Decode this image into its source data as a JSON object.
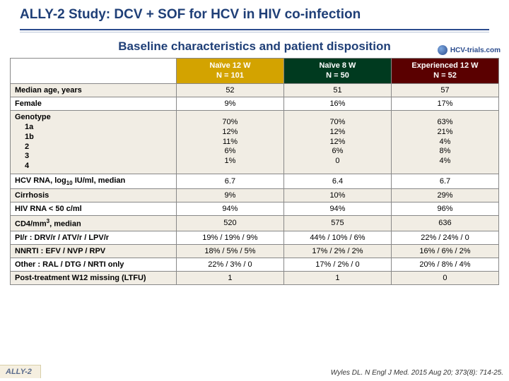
{
  "header": {
    "title": "ALLY-2 Study: DCV + SOF for HCV in HIV co-infection",
    "logo_text": "HCV-trials.com"
  },
  "subtitle": "Baseline characteristics and patient disposition",
  "columns": [
    {
      "label_line1": "Naïve 12 W",
      "label_line2": "N = 101",
      "bg": "#d3a300"
    },
    {
      "label_line1": "Naïve 8 W",
      "label_line2": "N = 50",
      "bg": "#003a1f"
    },
    {
      "label_line1": "Experienced 12 W",
      "label_line2": "N = 52",
      "bg": "#5a0000"
    }
  ],
  "rows": [
    {
      "label": "Median age, years",
      "band": true,
      "c": [
        "52",
        "51",
        "57"
      ]
    },
    {
      "label": "Female",
      "band": false,
      "c": [
        "9%",
        "16%",
        "17%"
      ]
    },
    {
      "label_html": "Genotype<br><span class='indent'>1a</span><br><span class='indent'>1b</span><br><span class='indent'>2</span><br><span class='indent'>3</span><br><span class='indent'>4</span>",
      "band": true,
      "multiline": true,
      "c_html": [
        "70%<br>12%<br>11%<br>6%<br>1%",
        "70%<br>12%<br>12%<br>6%<br>0",
        "63%<br>21%<br>4%<br>8%<br>4%"
      ]
    },
    {
      "label_html": "HCV RNA, log<span class='sub'>10</span> IU/ml, median",
      "band": false,
      "c": [
        "6.7",
        "6.4",
        "6.7"
      ]
    },
    {
      "label": "Cirrhosis",
      "band": true,
      "c": [
        "9%",
        "10%",
        "29%"
      ]
    },
    {
      "label": "HIV RNA < 50 c/ml",
      "band": false,
      "c": [
        "94%",
        "94%",
        "96%"
      ]
    },
    {
      "label_html": "CD4/mm<span class='sup'>3</span>, median",
      "band": true,
      "c": [
        "520",
        "575",
        "636"
      ]
    },
    {
      "label": "PI/r : DRV/r / ATV/r / LPV/r",
      "band": false,
      "c": [
        "19% / 19% / 9%",
        "44% / 10% / 6%",
        "22% / 24% / 0"
      ]
    },
    {
      "label": "NNRTI : EFV / NVP / RPV",
      "band": true,
      "c": [
        "18% / 5% / 5%",
        "17% / 2% / 2%",
        "16% / 6% / 2%"
      ]
    },
    {
      "label": "Other : RAL / DTG / NRTI only",
      "band": false,
      "c": [
        "22% / 3% / 0",
        "17% / 2% / 0",
        "20% / 8% / 4%"
      ]
    },
    {
      "label": "Post-treatment W12 missing (LTFU)",
      "band": true,
      "c": [
        "1",
        "1",
        "0"
      ]
    }
  ],
  "footer": {
    "left": "ALLY-2",
    "right": "Wyles DL. N Engl J Med. 2015 Aug 20; 373(8): 714-25."
  }
}
